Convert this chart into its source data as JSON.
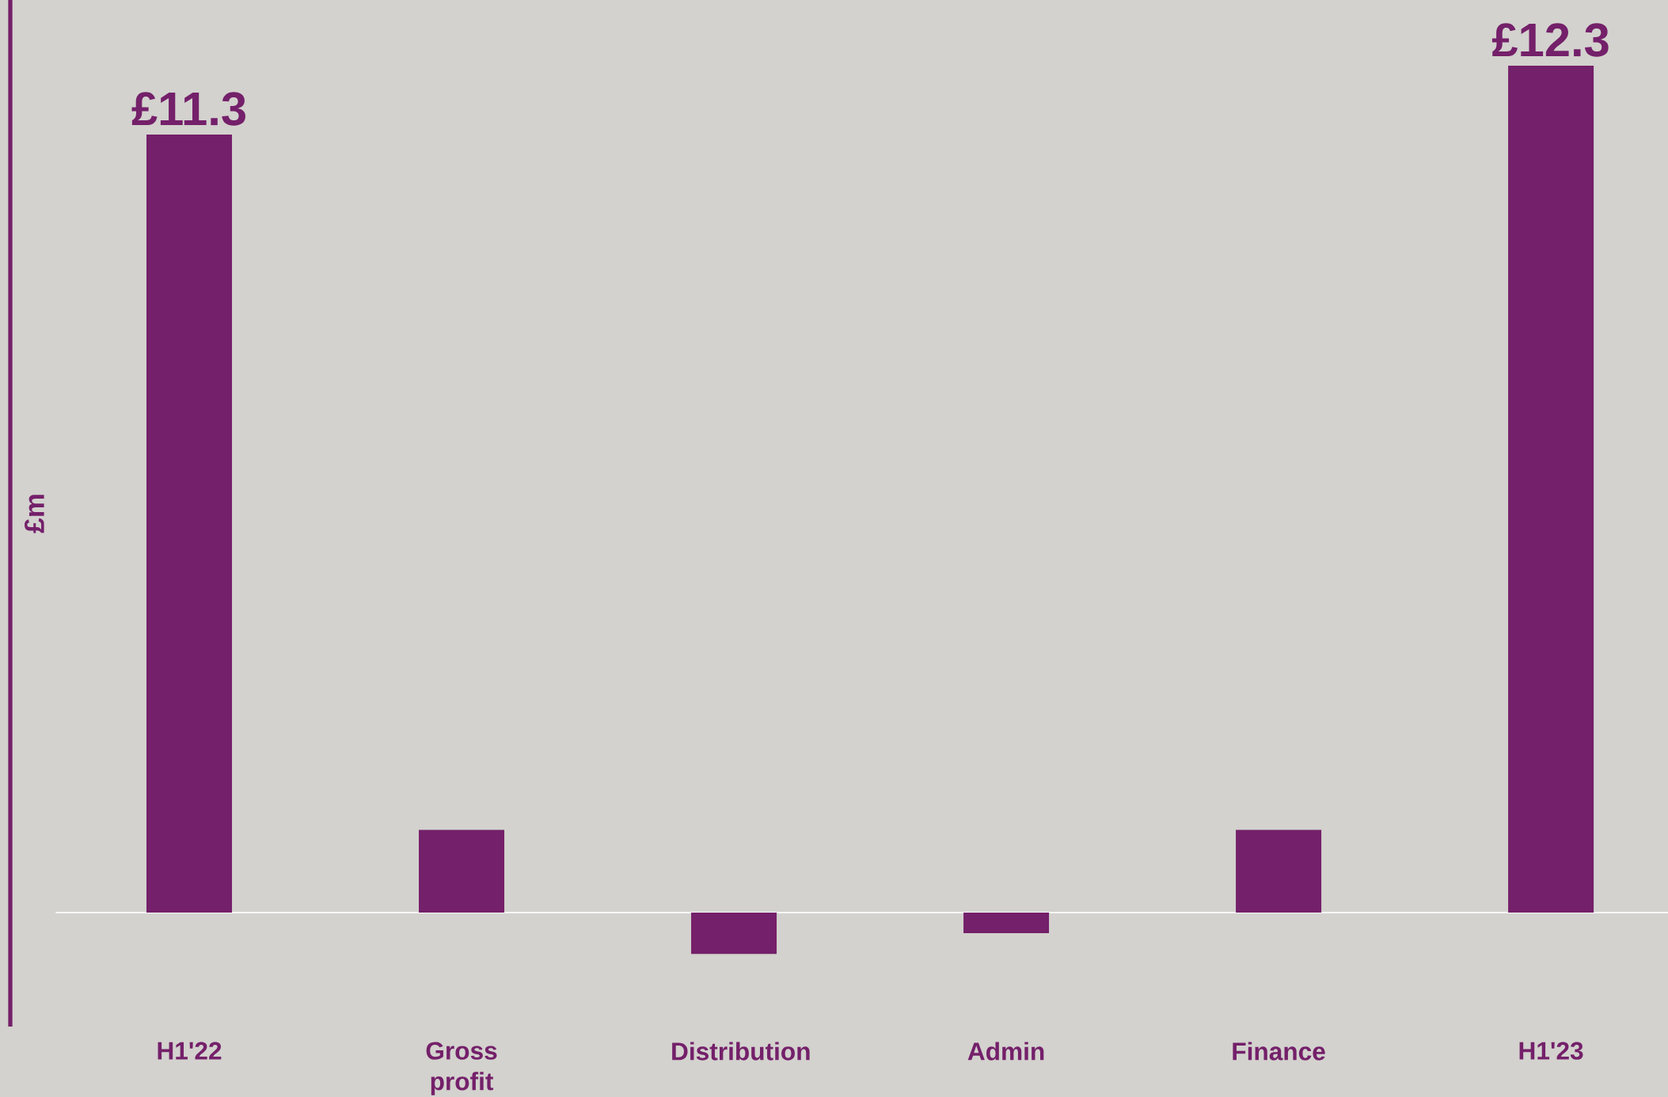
{
  "chart_data": {
    "type": "bar",
    "ylabel": "£m",
    "categories": [
      "H1'22",
      "Gross profit",
      "Distribution",
      "Admin",
      "Finance",
      "H1'23"
    ],
    "values": [
      11.3,
      1.2,
      -0.6,
      -0.3,
      1.2,
      12.3
    ],
    "value_labels": [
      "£11.3",
      null,
      null,
      null,
      null,
      "£12.3"
    ],
    "color": "#74206a"
  }
}
